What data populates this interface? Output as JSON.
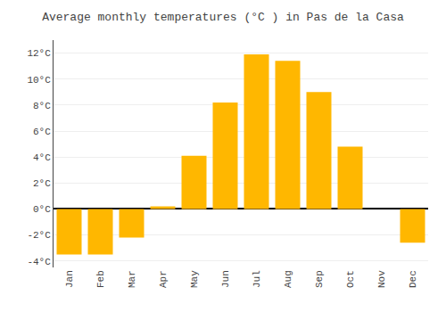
{
  "chart_data": {
    "type": "bar",
    "title": "Average monthly temperatures (°C ) in Pas de la Casa",
    "categories": [
      "Jan",
      "Feb",
      "Mar",
      "Apr",
      "May",
      "Jun",
      "Jul",
      "Aug",
      "Sep",
      "Oct",
      "Nov",
      "Dec"
    ],
    "values": [
      -3.5,
      -3.5,
      -2.2,
      0.2,
      4.1,
      8.2,
      11.9,
      11.4,
      9.0,
      4.8,
      0.0,
      -2.6
    ],
    "color": "#FFB700",
    "ylim": [
      -4.5,
      13.0
    ],
    "yticks": [
      {
        "value": -4,
        "label": "-4°C"
      },
      {
        "value": -2,
        "label": "-2°C"
      },
      {
        "value": 0,
        "label": "0°C"
      },
      {
        "value": 2,
        "label": "2°C"
      },
      {
        "value": 4,
        "label": "4°C"
      },
      {
        "value": 6,
        "label": "6°C"
      },
      {
        "value": 8,
        "label": "8°C"
      },
      {
        "value": 10,
        "label": "10°C"
      },
      {
        "value": 12,
        "label": "12°C"
      }
    ],
    "grid": true
  }
}
